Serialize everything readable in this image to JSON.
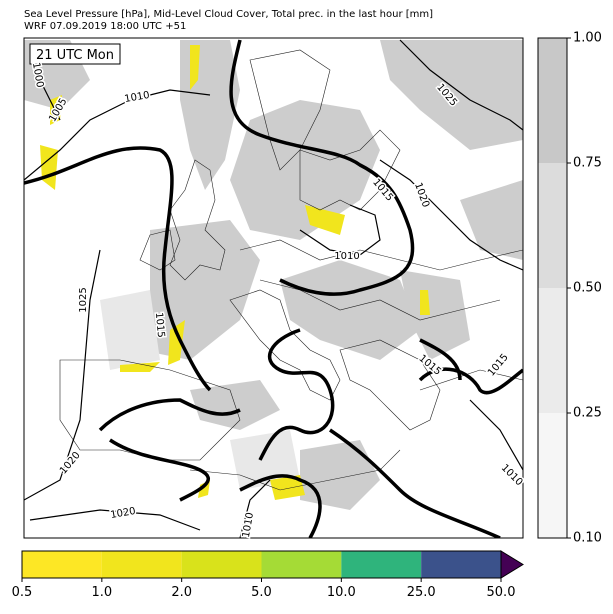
{
  "header": {
    "title": "Sea Level Pressure [hPa], Mid-Level Cloud Cover, Total prec. in the last hour [mm]",
    "subtitle": "WRF 07.09.2019 18:00 UTC +51"
  },
  "map": {
    "time_label": "21 UTC Mon",
    "contour_labels": [
      "1000",
      "1005",
      "1010",
      "1025",
      "1015",
      "1020",
      "1010",
      "1025",
      "1015",
      "1015",
      "1015",
      "1020",
      "1020",
      "1010",
      "1010"
    ]
  },
  "cloud_colorbar": {
    "ticks": [
      "1.00",
      "0.75",
      "0.50",
      "0.25",
      "0.10"
    ],
    "colors": [
      "#c8c8c8",
      "#dcdcdc",
      "#ebebeb",
      "#f6f6f6"
    ]
  },
  "precip_colorbar": {
    "ticks": [
      "0.5",
      "1.0",
      "2.0",
      "5.0",
      "10.0",
      "25.0",
      "50.0"
    ],
    "colors": [
      "#fde725",
      "#f1e51d",
      "#d9e21b",
      "#a5db36",
      "#2fb47c",
      "#3b528b"
    ],
    "extend_color": "#440154"
  }
}
